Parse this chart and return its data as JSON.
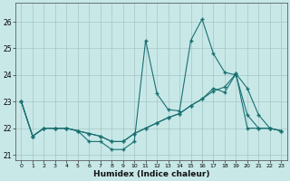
{
  "xlabel": "Humidex (Indice chaleur)",
  "background_color": "#c8e8e8",
  "grid_color": "#9dbdbd",
  "line_color": "#1a7070",
  "hours": [
    0,
    1,
    2,
    3,
    4,
    5,
    6,
    7,
    8,
    9,
    10,
    11,
    12,
    13,
    14,
    15,
    16,
    17,
    18,
    19,
    20,
    21,
    22,
    23
  ],
  "line1": [
    23.0,
    21.7,
    22.0,
    22.0,
    22.0,
    21.9,
    21.5,
    21.5,
    21.2,
    21.2,
    21.5,
    25.3,
    23.3,
    22.7,
    22.65,
    25.3,
    26.1,
    24.8,
    24.1,
    24.0,
    22.5,
    22.0,
    22.0,
    21.9
  ],
  "line2": [
    23.0,
    21.7,
    22.0,
    22.0,
    22.0,
    21.9,
    21.8,
    21.7,
    21.5,
    21.5,
    21.8,
    22.0,
    22.2,
    22.4,
    22.55,
    22.85,
    23.1,
    23.4,
    23.55,
    24.05,
    22.0,
    22.0,
    22.0,
    21.9
  ],
  "line3": [
    23.0,
    21.7,
    22.0,
    22.0,
    22.0,
    21.9,
    21.8,
    21.7,
    21.5,
    21.5,
    21.8,
    22.0,
    22.2,
    22.4,
    22.55,
    22.85,
    23.1,
    23.5,
    23.35,
    24.05,
    23.5,
    22.5,
    22.0,
    21.9
  ],
  "ylim": [
    20.8,
    26.7
  ],
  "yticks": [
    21,
    22,
    23,
    24,
    25,
    26
  ],
  "xlim": [
    -0.5,
    23.5
  ],
  "xticks": [
    0,
    1,
    2,
    3,
    4,
    5,
    6,
    7,
    8,
    9,
    10,
    11,
    12,
    13,
    14,
    15,
    16,
    17,
    18,
    19,
    20,
    21,
    22,
    23
  ]
}
